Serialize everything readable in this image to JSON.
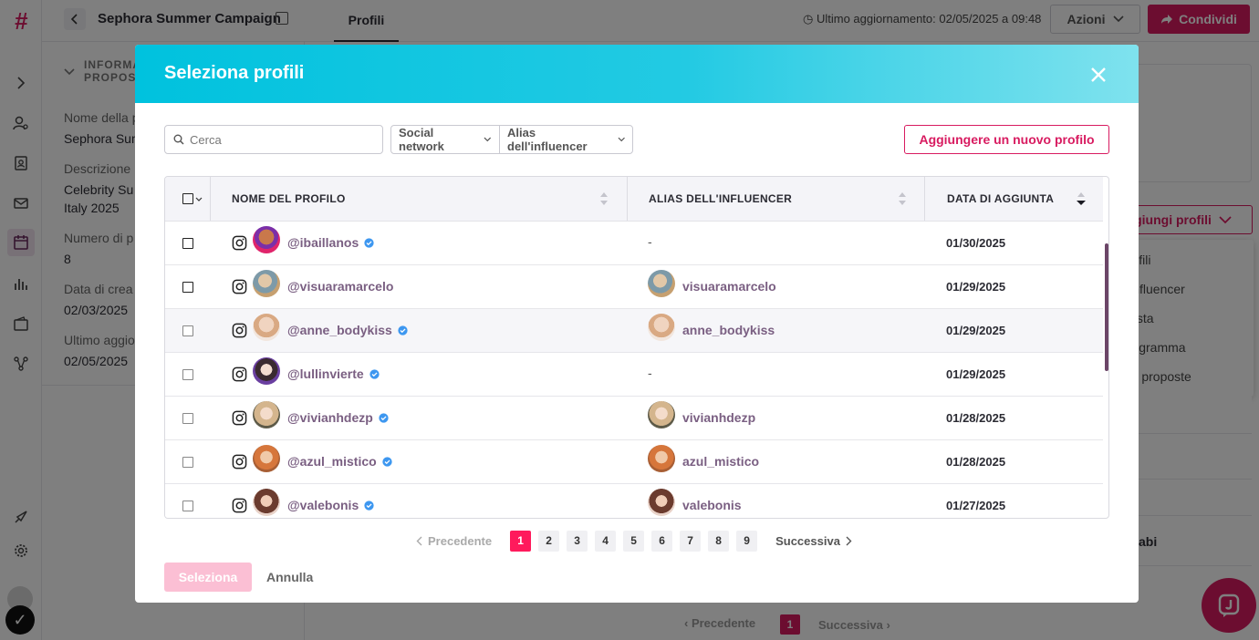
{
  "app": {
    "campaign_title": "Sephora Summer Campaign",
    "active_tab": "Profili",
    "last_update": "Ultimo aggiornamento: 02/05/2025 a 09:48",
    "actions_label": "Azioni",
    "share_label": "Condividi",
    "brand_color": "#d81b60"
  },
  "left_panel": {
    "header_line1": "INFORMA",
    "header_line2": "PROPOS",
    "fields": [
      {
        "label": "Nome della p",
        "value": "Sephora Sum"
      },
      {
        "label": "Descrizione",
        "value": "Celebrity Su"
      },
      {
        "label": "",
        "value": "Italy 2025"
      },
      {
        "label": "Numero di p",
        "value": "8"
      },
      {
        "label": "Data di crea",
        "value": "02/03/2025"
      },
      {
        "label": "Ultimo aggio",
        "value": "02/05/2025"
      }
    ]
  },
  "right_panel": {
    "add_profiles_label": "giungi profili",
    "menu_items": [
      "profili",
      "li influencer",
      "a lista",
      "programma",
      "ltre proposte"
    ],
    "row_text": "abi"
  },
  "bg_pagination": {
    "prev": "Precedente",
    "page": "1",
    "next": "Successiva"
  },
  "modal": {
    "title": "Seleziona profili",
    "search_placeholder": "Cerca",
    "filter_social": "Social network",
    "filter_alias": "Alias dell'influencer",
    "add_new_profile": "Aggiungere un nuovo profilo",
    "columns": {
      "profile_name": "NOME DEL PROFILO",
      "alias": "ALIAS DELL'INFLUENCER",
      "date_added": "DATA DI AGGIUNTA"
    },
    "rows": [
      {
        "handle": "@ibaillanos",
        "verified": true,
        "alias": "-",
        "date": "01/30/2025"
      },
      {
        "handle": "@visuaramarcelo",
        "verified": false,
        "alias": "visuaramarcelo",
        "date": "01/29/2025"
      },
      {
        "handle": "@anne_bodykiss",
        "verified": true,
        "alias": "anne_bodykiss",
        "date": "01/29/2025"
      },
      {
        "handle": "@lullinvierte",
        "verified": true,
        "alias": "-",
        "date": "01/29/2025"
      },
      {
        "handle": "@vivianhdezp",
        "verified": true,
        "alias": "vivianhdezp",
        "date": "01/28/2025"
      },
      {
        "handle": "@azul_mistico",
        "verified": true,
        "alias": "azul_mistico",
        "date": "01/28/2025"
      },
      {
        "handle": "@valebonis",
        "verified": true,
        "alias": "valebonis",
        "date": "01/27/2025"
      }
    ],
    "pagination": {
      "prev": "Precedente",
      "pages": [
        "1",
        "2",
        "3",
        "4",
        "5",
        "6",
        "7",
        "8",
        "9"
      ],
      "current": "1",
      "next": "Successiva"
    },
    "select_label": "Seleziona",
    "cancel_label": "Annulla"
  }
}
